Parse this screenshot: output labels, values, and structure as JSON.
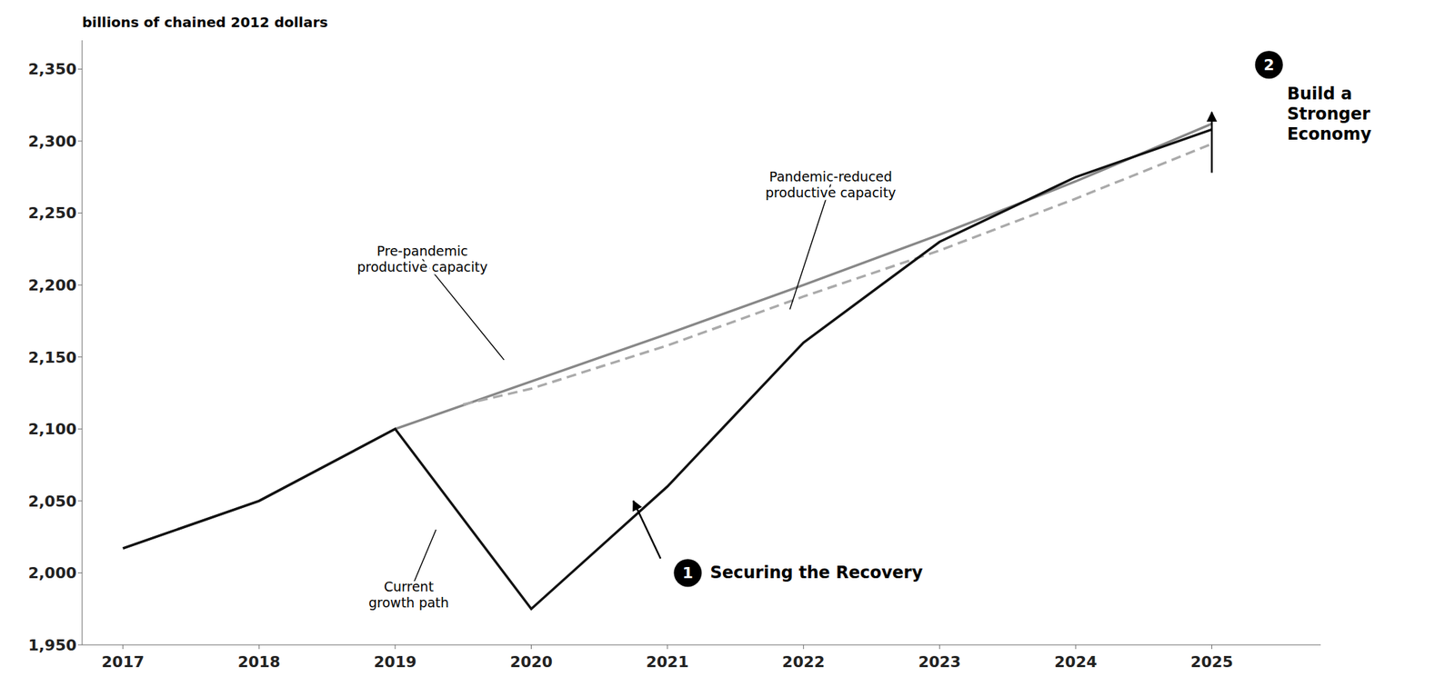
{
  "chart_data": {
    "type": "line",
    "ylabel": "billions of chained 2012 dollars",
    "xlim": [
      2016.7,
      2025.8
    ],
    "ylim": [
      1950,
      2370
    ],
    "xticks": [
      2017,
      2018,
      2019,
      2020,
      2021,
      2022,
      2023,
      2024,
      2025
    ],
    "yticks": [
      {
        "value": 1950,
        "label": "1,950"
      },
      {
        "value": 2000,
        "label": "2,000"
      },
      {
        "value": 2050,
        "label": "2,050"
      },
      {
        "value": 2100,
        "label": "2,100"
      },
      {
        "value": 2150,
        "label": "2,150"
      },
      {
        "value": 2200,
        "label": "2,200"
      },
      {
        "value": 2250,
        "label": "2,250"
      },
      {
        "value": 2300,
        "label": "2,300"
      },
      {
        "value": 2350,
        "label": "2,350"
      }
    ],
    "grid": false,
    "series": [
      {
        "x": [
          2017,
          2018,
          2019,
          2020,
          2021,
          2022,
          2023,
          2024,
          2025
        ],
        "values": [
          2017,
          2050,
          2100,
          2133,
          2166,
          2200,
          2235,
          2272,
          2312
        ],
        "color": "#888888",
        "line_style": "solid"
      },
      {
        "x": [
          2019.5,
          2020,
          2021,
          2022,
          2023,
          2024,
          2025
        ],
        "values": [
          2117,
          2128,
          2158,
          2192,
          2224,
          2260,
          2298
        ],
        "color": "#aaaaaa",
        "line_style": "dashed"
      },
      {
        "x": [
          2017,
          2018,
          2019,
          2020,
          2021,
          2022,
          2023,
          2024,
          2025
        ],
        "values": [
          2017,
          2050,
          2100,
          1975,
          2060,
          2160,
          2230,
          2275,
          2308
        ],
        "color": "#111111",
        "line_style": "solid"
      }
    ],
    "annotations": [
      {
        "text": "Pre-pandemic\nproductive capacity",
        "x": 2019.8,
        "y": 2148,
        "text_x": 2019.2,
        "text_y": 2218
      },
      {
        "text": "Pandemic-reduced\nproductive capacity",
        "x": 2021.9,
        "y": 2183,
        "text_x": 2022.2,
        "text_y": 2270
      },
      {
        "text": "Current\ngrowth path",
        "x": 2019.3,
        "y": 2030,
        "text_x": 2019.1,
        "text_y": 1985
      },
      {
        "badge": "1",
        "text": "Securing the Recovery",
        "x": 2020.75,
        "y": 2050,
        "arrow_from": [
          2020.95,
          2010
        ],
        "text_x": 2021.15,
        "text_y": 2000
      },
      {
        "badge": "2",
        "text": "Build a\nStronger\nEconomy",
        "x": 2025.0,
        "y": 2320,
        "arrow_from": [
          2025.0,
          2278
        ],
        "text_x": 2025.42,
        "text_y": 2353
      }
    ]
  }
}
